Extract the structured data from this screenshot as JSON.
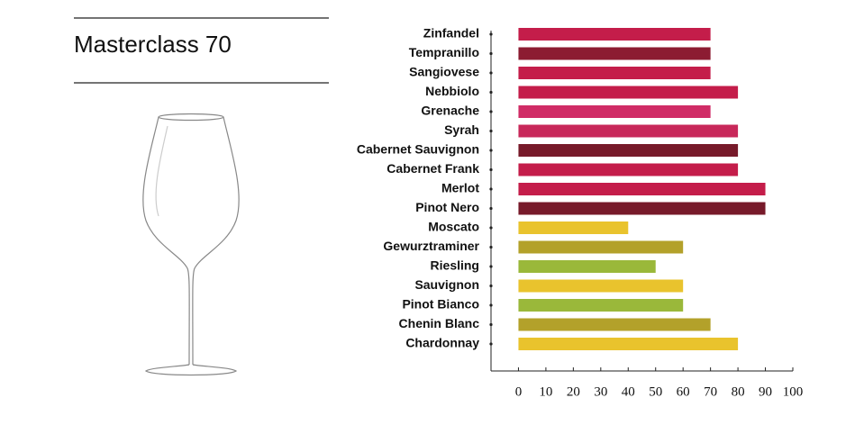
{
  "chart_data": {
    "type": "bar",
    "orientation": "horizontal",
    "title": "Masterclass 70",
    "categories": [
      "Zinfandel",
      "Tempranillo",
      "Sangiovese",
      "Nebbiolo",
      "Grenache",
      "Syrah",
      "Cabernet Sauvignon",
      "Cabernet Frank",
      "Merlot",
      "Pinot Nero",
      "Moscato",
      "Gewurztraminer",
      "Riesling",
      "Sauvignon",
      "Pinot Bianco",
      "Chenin Blanc",
      "Chardonnay"
    ],
    "values": [
      70,
      70,
      70,
      80,
      70,
      80,
      80,
      80,
      90,
      90,
      40,
      60,
      50,
      60,
      60,
      70,
      80
    ],
    "colors": [
      "#c41d4a",
      "#8c1c32",
      "#c41d4a",
      "#c41d4a",
      "#d02c66",
      "#c8285a",
      "#771a2a",
      "#c41d4a",
      "#c41d4a",
      "#771a2a",
      "#e9c32d",
      "#b3a12a",
      "#9ab83a",
      "#e9c32d",
      "#9ab83a",
      "#b3a12a",
      "#e9c32d"
    ],
    "xlim": [
      -10,
      100
    ],
    "xticks": [
      0,
      10,
      20,
      30,
      40,
      50,
      60,
      70,
      80,
      90,
      100
    ],
    "grid": false
  }
}
